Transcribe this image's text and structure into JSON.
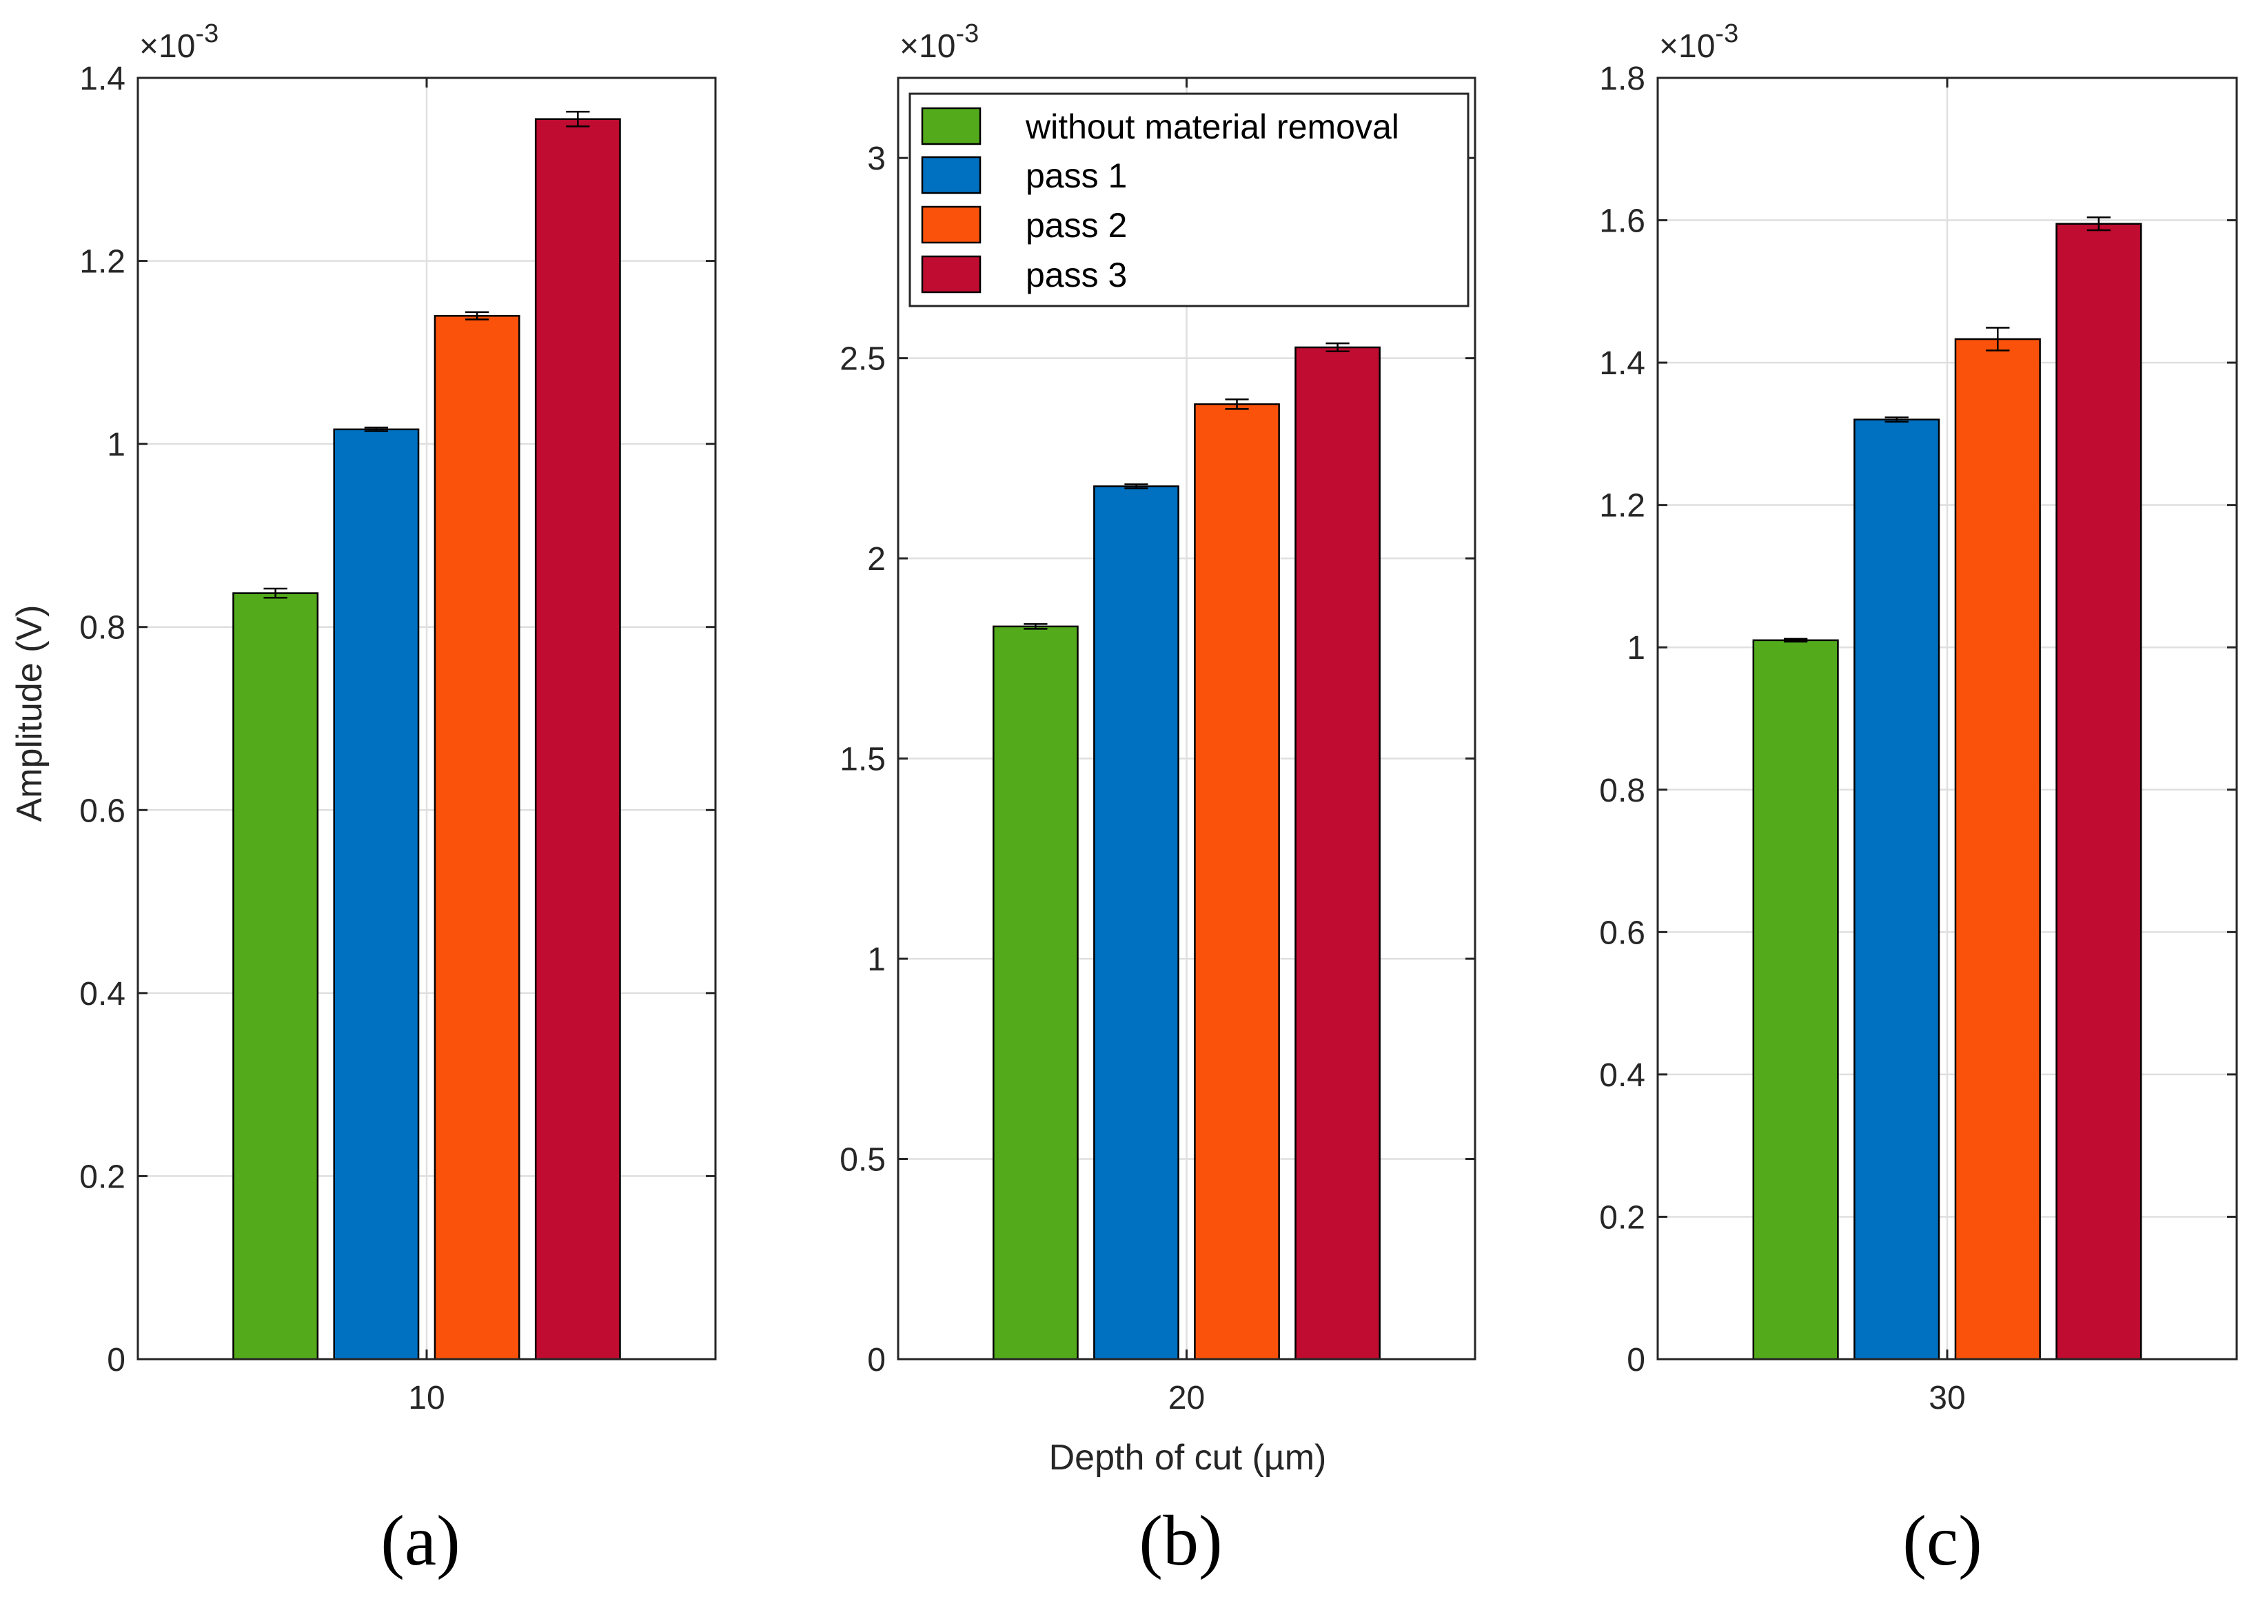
{
  "figure": {
    "y_axis_label": "Amplitude (V)",
    "x_axis_label": "Depth of cut (µm)"
  },
  "legend": {
    "entries": [
      "without material removal",
      "pass 1",
      "pass 2",
      "pass 3"
    ],
    "colors": [
      "#53AB1C",
      "#0070C0",
      "#FA520A",
      "#BF0C30"
    ]
  },
  "chart_data": [
    {
      "type": "bar",
      "panel_label": "(a)",
      "multiplier": "×10",
      "multiplier_exp": "-3",
      "categories": [
        "10"
      ],
      "ylim": [
        0,
        1.4
      ],
      "yticks": [
        0,
        0.2,
        0.4,
        0.6,
        0.8,
        1,
        1.2,
        1.4
      ],
      "ytick_labels": [
        "0",
        "0.2",
        "0.4",
        "0.6",
        "0.8",
        "1",
        "1.2",
        "1.4"
      ],
      "grid": true,
      "series": [
        {
          "name": "without material removal",
          "values": [
            0.837
          ],
          "error": [
            0.005
          ]
        },
        {
          "name": "pass 1",
          "values": [
            1.016
          ],
          "error": [
            0.002
          ]
        },
        {
          "name": "pass 2",
          "values": [
            1.14
          ],
          "error": [
            0.004
          ]
        },
        {
          "name": "pass 3",
          "values": [
            1.355
          ],
          "error": [
            0.008
          ]
        }
      ]
    },
    {
      "type": "bar",
      "panel_label": "(b)",
      "multiplier": "×10",
      "multiplier_exp": "-3",
      "categories": [
        "20"
      ],
      "ylim": [
        0,
        3.2
      ],
      "yticks": [
        0,
        0.5,
        1,
        1.5,
        2,
        2.5,
        3
      ],
      "ytick_labels": [
        "0",
        "0.5",
        "1",
        "1.5",
        "2",
        "2.5",
        "3"
      ],
      "grid": true,
      "series": [
        {
          "name": "without material removal",
          "values": [
            1.83
          ],
          "error": [
            0.006
          ]
        },
        {
          "name": "pass 1",
          "values": [
            2.18
          ],
          "error": [
            0.005
          ]
        },
        {
          "name": "pass 2",
          "values": [
            2.385
          ],
          "error": [
            0.012
          ]
        },
        {
          "name": "pass 3",
          "values": [
            2.527
          ],
          "error": [
            0.01
          ]
        }
      ]
    },
    {
      "type": "bar",
      "panel_label": "(c)",
      "multiplier": "×10",
      "multiplier_exp": "-3",
      "categories": [
        "30"
      ],
      "ylim": [
        0,
        1.8
      ],
      "yticks": [
        0,
        0.2,
        0.4,
        0.6,
        0.8,
        1,
        1.2,
        1.4,
        1.6,
        1.8
      ],
      "ytick_labels": [
        "0",
        "0.2",
        "0.4",
        "0.6",
        "0.8",
        "1",
        "1.2",
        "1.4",
        "1.6",
        "1.8"
      ],
      "grid": true,
      "series": [
        {
          "name": "without material removal",
          "values": [
            1.01
          ],
          "error": [
            0.002
          ]
        },
        {
          "name": "pass 1",
          "values": [
            1.32
          ],
          "error": [
            0.003
          ]
        },
        {
          "name": "pass 2",
          "values": [
            1.433
          ],
          "error": [
            0.016
          ]
        },
        {
          "name": "pass 3",
          "values": [
            1.595
          ],
          "error": [
            0.009
          ]
        }
      ]
    }
  ]
}
